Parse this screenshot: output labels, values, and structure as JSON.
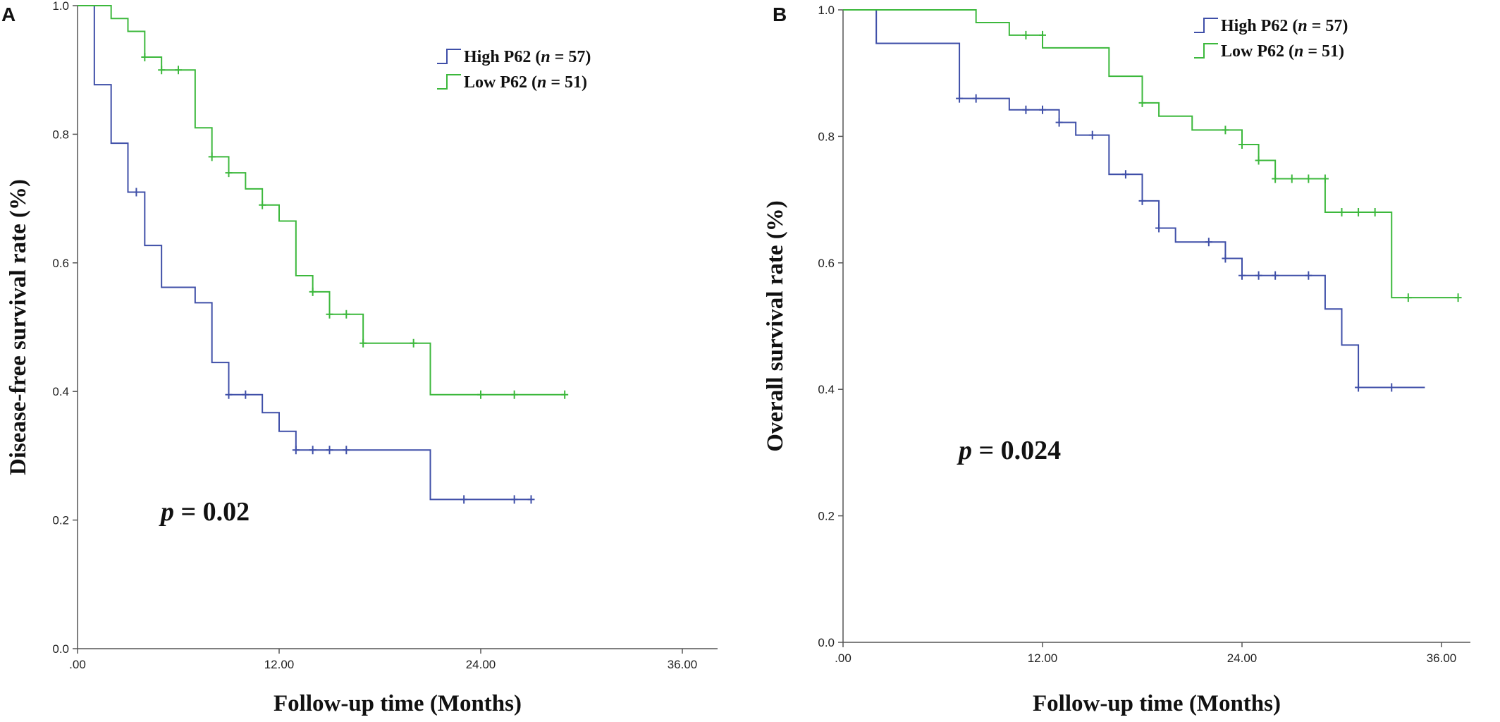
{
  "chart_data": [
    {
      "type": "line",
      "panel_label": "A",
      "xlabel": "Follow-up time (Months)",
      "ylabel": "Disease-free survival rate  (%)",
      "x_ticks": [
        ".00",
        "12.00",
        "24.00",
        "36.00"
      ],
      "y_ticks": [
        "0.0",
        "0.2",
        "0.4",
        "0.6",
        "0.8",
        "1.0"
      ],
      "xlim": [
        0,
        38
      ],
      "ylim": [
        0,
        1
      ],
      "grid": false,
      "legend_placement": "top-right",
      "annotation": {
        "italic": "p",
        "rest": " = 0.02"
      },
      "series": [
        {
          "legend_bold": "High P62 (",
          "legend_italic": "n",
          "legend_rest": " = 57)",
          "color": "#3f4fa8",
          "steps": [
            [
              0,
              1.0
            ],
            [
              1,
              0.877
            ],
            [
              2,
              0.786
            ],
            [
              3,
              0.71
            ],
            [
              4,
              0.627
            ],
            [
              5,
              0.562
            ],
            [
              7,
              0.538
            ],
            [
              8,
              0.445
            ],
            [
              9,
              0.395
            ],
            [
              11,
              0.367
            ],
            [
              12,
              0.338
            ],
            [
              13,
              0.309
            ],
            [
              21,
              0.232
            ]
          ],
          "end_x": 27,
          "censored": [
            [
              3.5,
              0.71
            ],
            [
              9,
              0.395
            ],
            [
              10,
              0.395
            ],
            [
              13,
              0.309
            ],
            [
              14,
              0.309
            ],
            [
              15,
              0.309
            ],
            [
              16,
              0.309
            ],
            [
              23,
              0.232
            ],
            [
              26,
              0.232
            ],
            [
              27,
              0.232
            ]
          ]
        },
        {
          "legend_bold": "Low P62 (",
          "legend_italic": "n",
          "legend_rest": " = 51)",
          "color": "#3cb83c",
          "steps": [
            [
              0,
              1.0
            ],
            [
              2,
              0.98
            ],
            [
              3,
              0.96
            ],
            [
              4,
              0.92
            ],
            [
              5,
              0.9
            ],
            [
              7,
              0.81
            ],
            [
              8,
              0.765
            ],
            [
              9,
              0.74
            ],
            [
              10,
              0.715
            ],
            [
              11,
              0.69
            ],
            [
              12,
              0.665
            ],
            [
              13,
              0.58
            ],
            [
              14,
              0.555
            ],
            [
              15,
              0.52
            ],
            [
              17,
              0.475
            ],
            [
              21,
              0.395
            ]
          ],
          "end_x": 29,
          "censored": [
            [
              4,
              0.92
            ],
            [
              5,
              0.9
            ],
            [
              6,
              0.9
            ],
            [
              8,
              0.765
            ],
            [
              9,
              0.74
            ],
            [
              11,
              0.69
            ],
            [
              14,
              0.555
            ],
            [
              15,
              0.52
            ],
            [
              16,
              0.52
            ],
            [
              17,
              0.475
            ],
            [
              20,
              0.475
            ],
            [
              24,
              0.395
            ],
            [
              26,
              0.395
            ],
            [
              29,
              0.395
            ]
          ]
        }
      ]
    },
    {
      "type": "line",
      "panel_label": "B",
      "xlabel": "Follow-up time (Months)",
      "ylabel": "Overall survival rate  (%)",
      "x_ticks": [
        ".00",
        "12.00",
        "24.00",
        "36.00"
      ],
      "y_ticks": [
        "0.0",
        "0.2",
        "0.4",
        "0.6",
        "0.8",
        "1.0"
      ],
      "xlim": [
        0,
        38
      ],
      "ylim": [
        0,
        1
      ],
      "grid": false,
      "legend_placement": "top-right",
      "annotation": {
        "italic": "p",
        "rest": " = 0.024"
      },
      "series": [
        {
          "legend_bold": "High P62 (",
          "legend_italic": "n",
          "legend_rest": " = 57)",
          "color": "#3f4fa8",
          "steps": [
            [
              0,
              1.0
            ],
            [
              2,
              0.947
            ],
            [
              7,
              0.86
            ],
            [
              10,
              0.842
            ],
            [
              13,
              0.822
            ],
            [
              14,
              0.802
            ],
            [
              16,
              0.74
            ],
            [
              18,
              0.698
            ],
            [
              19,
              0.655
            ],
            [
              20,
              0.633
            ],
            [
              23,
              0.607
            ],
            [
              24,
              0.58
            ],
            [
              29,
              0.527
            ],
            [
              30,
              0.47
            ],
            [
              31,
              0.403
            ]
          ],
          "end_x": 35,
          "censored": [
            [
              7,
              0.86
            ],
            [
              8,
              0.86
            ],
            [
              11,
              0.842
            ],
            [
              12,
              0.842
            ],
            [
              13,
              0.822
            ],
            [
              15,
              0.802
            ],
            [
              17,
              0.74
            ],
            [
              18,
              0.698
            ],
            [
              19,
              0.655
            ],
            [
              22,
              0.633
            ],
            [
              23,
              0.607
            ],
            [
              24,
              0.58
            ],
            [
              25,
              0.58
            ],
            [
              26,
              0.58
            ],
            [
              28,
              0.58
            ],
            [
              31,
              0.403
            ],
            [
              33,
              0.403
            ]
          ]
        },
        {
          "legend_bold": "Low P62 (",
          "legend_italic": "n",
          "legend_rest": " = 51)",
          "color": "#3cb83c",
          "steps": [
            [
              0,
              1.0
            ],
            [
              8,
              0.98
            ],
            [
              10,
              0.96
            ],
            [
              12,
              0.94
            ],
            [
              16,
              0.895
            ],
            [
              18,
              0.853
            ],
            [
              19,
              0.832
            ],
            [
              21,
              0.81
            ],
            [
              24,
              0.787
            ],
            [
              25,
              0.762
            ],
            [
              26,
              0.733
            ],
            [
              29,
              0.68
            ],
            [
              33,
              0.545
            ]
          ],
          "end_x": 37,
          "censored": [
            [
              11,
              0.96
            ],
            [
              12,
              0.96
            ],
            [
              18,
              0.853
            ],
            [
              23,
              0.81
            ],
            [
              24,
              0.787
            ],
            [
              25,
              0.762
            ],
            [
              26,
              0.733
            ],
            [
              27,
              0.733
            ],
            [
              28,
              0.733
            ],
            [
              29,
              0.733
            ],
            [
              30,
              0.68
            ],
            [
              31,
              0.68
            ],
            [
              32,
              0.68
            ],
            [
              34,
              0.545
            ],
            [
              37,
              0.545
            ]
          ]
        }
      ]
    }
  ]
}
